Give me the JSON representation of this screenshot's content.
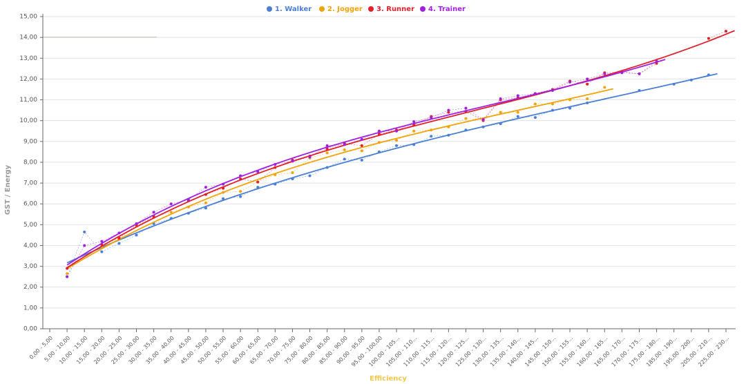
{
  "chart_data": {
    "type": "line",
    "legend": "top",
    "grid": true,
    "x_label": "Efficiency",
    "y_label": "GST / Energy",
    "categories": [
      "0,00 - 5,00",
      "5,00 - 10,00",
      "10,00 - 15,00",
      "15,00 - 20,00",
      "20,00 - 25,00",
      "25,00 - 30,00",
      "30,00 - 35,00",
      "35,00 - 40,00",
      "40,00 - 45,00",
      "45,00 - 50,00",
      "50,00 - 55,00",
      "55,00 - 60,00",
      "60,00 - 65,00",
      "65,00 - 70,00",
      "70,00 - 75,00",
      "75,00 - 80,00",
      "80,00 - 85,00",
      "85,00 - 90,00",
      "90,00 - 95,00",
      "95,00 - 100,00",
      "100,00 - 105...",
      "105,00 - 110...",
      "110,00 - 115...",
      "115,00 - 120...",
      "120,00 - 125...",
      "125,00 - 130...",
      "130,00 - 135...",
      "135,00 - 140...",
      "140,00 - 145...",
      "145,00 - 150...",
      "150,00 - 155...",
      "155,00 - 160...",
      "160,00 - 165...",
      "165,00 - 170...",
      "170,00 - 175...",
      "175,00 - 180...",
      "185,00 - 190...",
      "195,00 - 200...",
      "205,00 - 210...",
      "225,00 - 230..."
    ],
    "series": [
      {
        "name": "1. Walker",
        "color": "#4a7fd4",
        "values": [
          null,
          2.5,
          4.65,
          3.7,
          4.1,
          4.5,
          5.05,
          5.3,
          5.55,
          5.8,
          6.25,
          6.35,
          6.8,
          6.95,
          7.2,
          7.35,
          7.75,
          8.15,
          8.1,
          8.5,
          8.8,
          8.85,
          9.25,
          9.3,
          9.55,
          9.7,
          9.85,
          10.2,
          10.15,
          10.5,
          10.6,
          10.85,
          null,
          null,
          11.45,
          null,
          11.75,
          11.95,
          12.2,
          null
        ]
      },
      {
        "name": "2. Jogger",
        "color": "#f0a30a",
        "values": [
          null,
          2.65,
          null,
          3.95,
          4.3,
          4.95,
          5.35,
          5.6,
          5.85,
          6.05,
          6.55,
          6.6,
          7.05,
          7.4,
          7.5,
          8.2,
          8.45,
          8.6,
          8.55,
          8.95,
          9.05,
          9.5,
          9.55,
          9.7,
          10.1,
          10.05,
          10.4,
          10.4,
          10.8,
          10.8,
          11.0,
          11.05,
          11.6,
          null,
          null,
          null,
          null,
          null,
          null,
          null
        ]
      },
      {
        "name": "3. Runner",
        "color": "#e0202a",
        "values": [
          null,
          2.9,
          null,
          4.05,
          4.35,
          5.0,
          5.4,
          null,
          6.15,
          6.45,
          6.75,
          7.2,
          7.05,
          7.75,
          8.1,
          8.3,
          8.65,
          8.9,
          8.8,
          9.35,
          9.55,
          9.8,
          10.2,
          10.4,
          10.45,
          10.0,
          11.0,
          11.1,
          11.3,
          11.5,
          11.9,
          11.75,
          12.3,
          12.35,
          12.25,
          12.75,
          null,
          null,
          13.95,
          14.3
        ]
      },
      {
        "name": "4. Trainer",
        "color": "#a020e0",
        "values": [
          null,
          2.5,
          4.0,
          4.2,
          4.6,
          5.05,
          5.6,
          6.0,
          6.2,
          6.8,
          6.95,
          7.35,
          7.55,
          7.9,
          8.05,
          8.25,
          8.8,
          8.85,
          9.1,
          9.5,
          9.5,
          9.95,
          10.15,
          10.5,
          10.6,
          10.05,
          11.05,
          11.2,
          11.3,
          11.45,
          11.85,
          12.0,
          12.25,
          12.3,
          12.25,
          12.85,
          null,
          null,
          null,
          null
        ]
      }
    ],
    "ylim": [
      0,
      15
    ],
    "yticks": [
      {
        "value": 0,
        "label": "0,00"
      },
      {
        "value": 1,
        "label": "1,00"
      },
      {
        "value": 2,
        "label": "2,00"
      },
      {
        "value": 3,
        "label": "3,00"
      },
      {
        "value": 4,
        "label": "4,00"
      },
      {
        "value": 5,
        "label": "5,00"
      },
      {
        "value": 6,
        "label": "6,00"
      },
      {
        "value": 7,
        "label": "7,00"
      },
      {
        "value": 8,
        "label": "8,00"
      },
      {
        "value": 9,
        "label": "9,00"
      },
      {
        "value": 10,
        "label": "10,00"
      },
      {
        "value": 11,
        "label": "11,00"
      },
      {
        "value": 12,
        "label": "12,00"
      },
      {
        "value": 13,
        "label": "13,00"
      },
      {
        "value": 14,
        "label": "14,00"
      },
      {
        "value": 15,
        "label": "15,00"
      }
    ]
  }
}
